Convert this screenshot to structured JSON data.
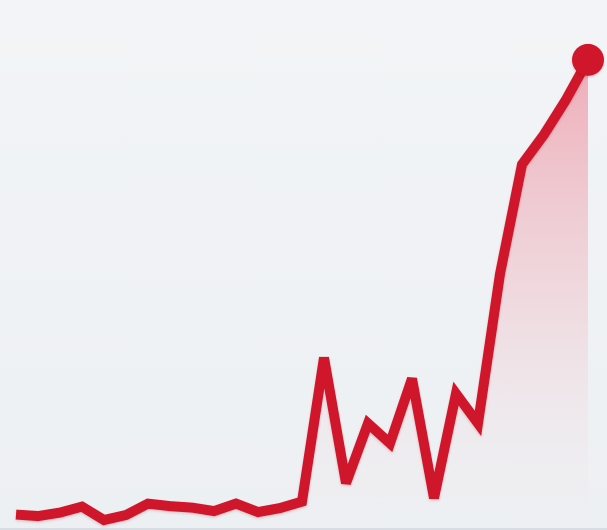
{
  "chart_data": {
    "type": "area",
    "title": "",
    "xlabel": "",
    "ylabel": "",
    "grid": false,
    "legend": "none",
    "x": [
      1,
      2,
      3,
      4,
      5,
      6,
      7,
      8,
      9,
      10,
      11,
      12,
      13,
      14,
      15,
      16,
      17,
      18,
      19,
      20,
      21,
      22,
      23,
      24,
      25,
      26,
      27
    ],
    "series": [
      {
        "values": [
          2.7,
          2.4,
          3.1,
          4.3,
          1.6,
          2.6,
          4.9,
          4.4,
          4.1,
          3.4,
          4.9,
          3.2,
          4.0,
          5.3,
          34.2,
          9.0,
          21.0,
          17.0,
          30.0,
          6.0,
          27.0,
          21.0,
          51.0,
          73.0,
          79.0,
          86.0,
          94.0
        ],
        "color": "#d0142c",
        "fill_color": "#e8233f",
        "highlight_last_point": true
      }
    ],
    "xlim": [
      1,
      27
    ],
    "ylim": [
      0,
      100
    ]
  }
}
